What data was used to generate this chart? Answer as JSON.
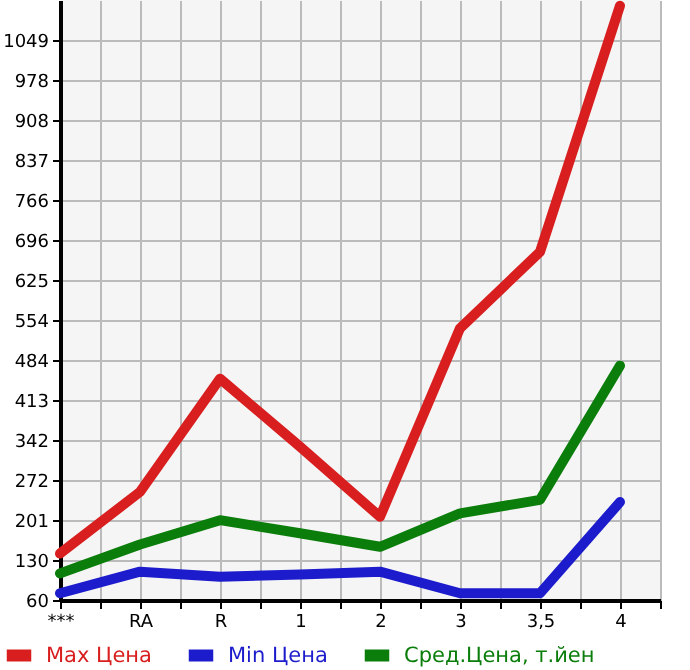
{
  "chart_data": {
    "type": "line",
    "categories": [
      "***",
      "RA",
      "R",
      "1",
      "2",
      "3",
      "3,5",
      "4"
    ],
    "series": [
      {
        "name": "Max Цена",
        "color": "#d81e1e",
        "values": [
          142,
          251,
          451,
          331,
          207,
          540,
          675,
          1110
        ]
      },
      {
        "name": "Min Цена",
        "color": "#1c1ccc",
        "values": [
          72,
          110,
          101,
          105,
          110,
          72,
          72,
          233
        ]
      },
      {
        "name": "Сред.Цена, т.йен",
        "color": "#0a7d0a",
        "values": [
          107,
          158,
          201,
          178,
          154,
          213,
          237,
          474
        ]
      }
    ],
    "ylim": [
      60,
      1120
    ],
    "yticks": [
      60,
      130,
      201,
      272,
      342,
      413,
      484,
      554,
      625,
      696,
      766,
      837,
      908,
      978,
      1049
    ],
    "grid": true,
    "legend": "bottom",
    "line_style": "solid",
    "marker": "none"
  }
}
